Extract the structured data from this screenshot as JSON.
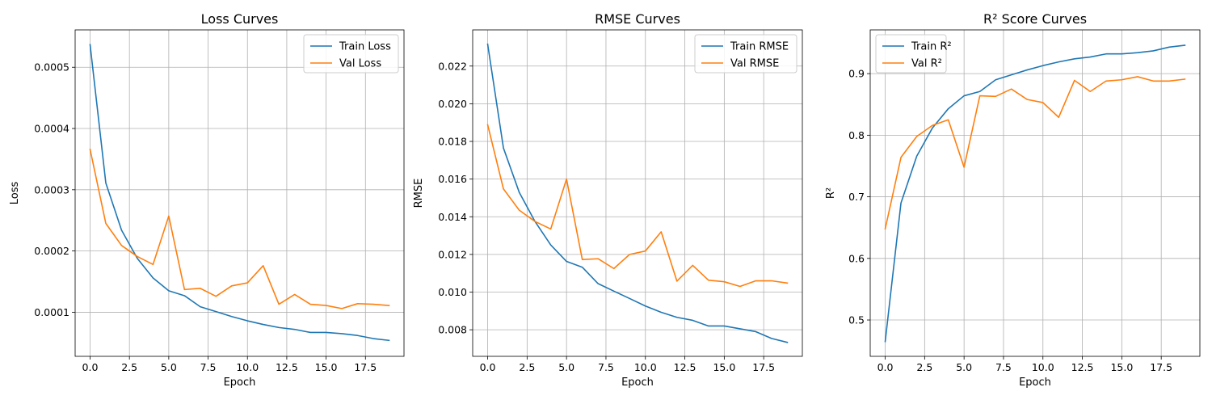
{
  "chart_data": [
    {
      "type": "line",
      "title": "Loss Curves",
      "xlabel": "Epoch",
      "ylabel": "Loss",
      "xlim": [
        -0.95,
        19.95
      ],
      "ylim": [
        2.8e-05,
        0.000561
      ],
      "xticks": [
        0.0,
        2.5,
        5.0,
        7.5,
        10.0,
        12.5,
        15.0,
        17.5
      ],
      "xtick_labels": [
        "0.0",
        "2.5",
        "5.0",
        "7.5",
        "10.0",
        "12.5",
        "15.0",
        "17.5"
      ],
      "yticks": [
        0.0001,
        0.0002,
        0.0003,
        0.0004,
        0.0005
      ],
      "ytick_labels": [
        "0.0001",
        "0.0002",
        "0.0003",
        "0.0004",
        "0.0005"
      ],
      "grid": true,
      "legend_position": "top-right",
      "x": [
        0,
        1,
        2,
        3,
        4,
        5,
        6,
        7,
        8,
        9,
        10,
        11,
        12,
        13,
        14,
        15,
        16,
        17,
        18,
        19
      ],
      "series": [
        {
          "name": "Train Loss",
          "color": "#1f77b4",
          "values": [
            0.000537,
            0.000311,
            0.000234,
            0.000188,
            0.000156,
            0.000135,
            0.000127,
            0.000109,
            0.000101,
            9.3e-05,
            8.6e-05,
            8e-05,
            7.5e-05,
            7.2e-05,
            6.7e-05,
            6.7e-05,
            6.5e-05,
            6.2e-05,
            5.7e-05,
            5.4e-05
          ]
        },
        {
          "name": "Val Loss",
          "color": "#ff7f0e",
          "values": [
            0.000366,
            0.000245,
            0.000209,
            0.000191,
            0.000178,
            0.000257,
            0.000137,
            0.000139,
            0.000126,
            0.000143,
            0.000148,
            0.000176,
            0.000113,
            0.000129,
            0.000113,
            0.000111,
            0.000106,
            0.000114,
            0.000113,
            0.000111
          ]
        }
      ]
    },
    {
      "type": "line",
      "title": "RMSE Curves",
      "xlabel": "Epoch",
      "ylabel": "RMSE",
      "xlim": [
        -0.95,
        19.95
      ],
      "ylim": [
        0.00659,
        0.02392
      ],
      "xticks": [
        0.0,
        2.5,
        5.0,
        7.5,
        10.0,
        12.5,
        15.0,
        17.5
      ],
      "xtick_labels": [
        "0.0",
        "2.5",
        "5.0",
        "7.5",
        "10.0",
        "12.5",
        "15.0",
        "17.5"
      ],
      "yticks": [
        0.008,
        0.01,
        0.012,
        0.014,
        0.016,
        0.018,
        0.02,
        0.022
      ],
      "ytick_labels": [
        "0.008",
        "0.010",
        "0.012",
        "0.014",
        "0.016",
        "0.018",
        "0.020",
        "0.022"
      ],
      "grid": true,
      "legend_position": "top-right",
      "x": [
        0,
        1,
        2,
        3,
        4,
        5,
        6,
        7,
        8,
        9,
        10,
        11,
        12,
        13,
        14,
        15,
        16,
        17,
        18,
        19
      ],
      "series": [
        {
          "name": "Train RMSE",
          "color": "#1f77b4",
          "values": [
            0.02316,
            0.01765,
            0.0153,
            0.01375,
            0.0125,
            0.01163,
            0.01132,
            0.01045,
            0.01005,
            0.00966,
            0.00926,
            0.00893,
            0.00866,
            0.0085,
            0.0082,
            0.0082,
            0.00805,
            0.0079,
            0.00754,
            0.00733
          ]
        },
        {
          "name": "Val RMSE",
          "color": "#ff7f0e",
          "values": [
            0.01888,
            0.01548,
            0.01435,
            0.01375,
            0.01335,
            0.016,
            0.01173,
            0.01177,
            0.01125,
            0.012,
            0.01218,
            0.0132,
            0.01058,
            0.01142,
            0.01063,
            0.01055,
            0.0103,
            0.0106,
            0.0106,
            0.01048
          ]
        }
      ]
    },
    {
      "type": "line",
      "title": "R² Score Curves",
      "xlabel": "Epoch",
      "ylabel": "R²",
      "xlim": [
        -0.95,
        19.95
      ],
      "ylim": [
        0.441,
        0.971
      ],
      "xticks": [
        0.0,
        2.5,
        5.0,
        7.5,
        10.0,
        12.5,
        15.0,
        17.5
      ],
      "xtick_labels": [
        "0.0",
        "2.5",
        "5.0",
        "7.5",
        "10.0",
        "12.5",
        "15.0",
        "17.5"
      ],
      "yticks": [
        0.5,
        0.6,
        0.7,
        0.8,
        0.9
      ],
      "ytick_labels": [
        "0.5",
        "0.6",
        "0.7",
        "0.8",
        "0.9"
      ],
      "grid": true,
      "legend_position": "top-left",
      "x": [
        0,
        1,
        2,
        3,
        4,
        5,
        6,
        7,
        8,
        9,
        10,
        11,
        12,
        13,
        14,
        15,
        16,
        17,
        18,
        19
      ],
      "series": [
        {
          "name": "Train R²",
          "color": "#1f77b4",
          "values": [
            0.465,
            0.69,
            0.766,
            0.812,
            0.843,
            0.864,
            0.871,
            0.89,
            0.898,
            0.906,
            0.913,
            0.919,
            0.924,
            0.927,
            0.932,
            0.932,
            0.934,
            0.937,
            0.943,
            0.946
          ]
        },
        {
          "name": "Val R²",
          "color": "#ff7f0e",
          "values": [
            0.648,
            0.764,
            0.798,
            0.816,
            0.825,
            0.748,
            0.864,
            0.863,
            0.875,
            0.858,
            0.853,
            0.829,
            0.889,
            0.871,
            0.888,
            0.89,
            0.895,
            0.888,
            0.888,
            0.891
          ]
        }
      ]
    }
  ]
}
